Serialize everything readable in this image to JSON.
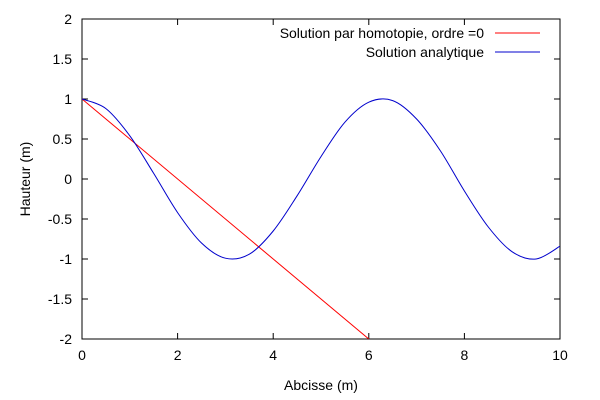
{
  "chart_data": {
    "type": "line",
    "xlabel": "Abcisse (m)",
    "ylabel": "Hauteur (m)",
    "xlim": [
      0,
      10
    ],
    "ylim": [
      -2,
      2
    ],
    "x_ticks": [
      "0",
      "2",
      "4",
      "6",
      "8",
      "10"
    ],
    "y_ticks": [
      "2",
      "1.5",
      "1",
      "0.5",
      "0",
      "-0.5",
      "-1",
      "-1.5",
      "-2"
    ],
    "grid": false,
    "legend_position": "top-right",
    "series": [
      {
        "name": "Solution par homotopie, ordre =0",
        "color": "#ff0000",
        "x": [
          0,
          6
        ],
        "y": [
          1,
          -2
        ]
      },
      {
        "name": "Solution analytique",
        "color": "#0000cc",
        "x": [
          0,
          0.5,
          1,
          1.5,
          2,
          2.5,
          3,
          3.5,
          4,
          4.5,
          5,
          5.5,
          6,
          6.5,
          7,
          7.5,
          8,
          8.5,
          9,
          9.5,
          10
        ],
        "y": [
          1,
          0.88,
          0.54,
          0.07,
          -0.42,
          -0.8,
          -0.99,
          -0.94,
          -0.65,
          -0.21,
          0.28,
          0.71,
          0.96,
          0.98,
          0.75,
          0.35,
          -0.15,
          -0.6,
          -0.91,
          -1.0,
          -0.84
        ]
      }
    ]
  }
}
